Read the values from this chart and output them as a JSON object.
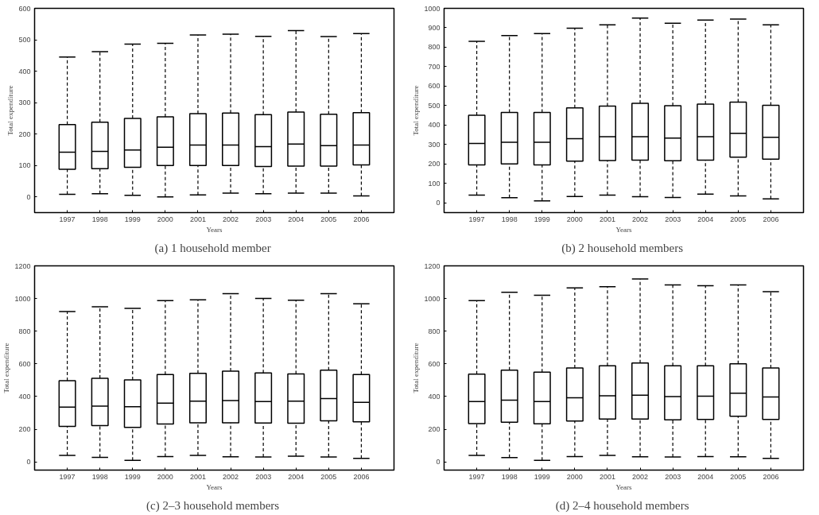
{
  "chart_data": [
    {
      "type": "box",
      "title": "(a)  1 household member",
      "xlabel": "Years",
      "ylabel": "Total expenditure",
      "categories": [
        "1997",
        "1998",
        "1999",
        "2000",
        "2001",
        "2002",
        "2003",
        "2004",
        "2005",
        "2006"
      ],
      "ylim": [
        -50,
        600
      ],
      "yticks": [
        0,
        100,
        200,
        300,
        400,
        500,
        600
      ],
      "line_style": "dashed",
      "series": [
        {
          "color": "#000000",
          "boxes": [
            {
              "low": 8,
              "q1": 88,
              "median": 142,
              "q3": 230,
              "high": 445
            },
            {
              "low": 10,
              "q1": 90,
              "median": 145,
              "q3": 238,
              "high": 462
            },
            {
              "low": 5,
              "q1": 94,
              "median": 149,
              "q3": 250,
              "high": 486
            },
            {
              "low": 0,
              "q1": 100,
              "median": 158,
              "q3": 255,
              "high": 489
            },
            {
              "low": 6,
              "q1": 100,
              "median": 165,
              "q3": 265,
              "high": 515
            },
            {
              "low": 12,
              "q1": 100,
              "median": 165,
              "q3": 267,
              "high": 518
            },
            {
              "low": 10,
              "q1": 97,
              "median": 160,
              "q3": 262,
              "high": 511
            },
            {
              "low": 12,
              "q1": 98,
              "median": 168,
              "q3": 270,
              "high": 529
            },
            {
              "low": 12,
              "q1": 98,
              "median": 163,
              "q3": 263,
              "high": 510
            },
            {
              "low": 3,
              "q1": 102,
              "median": 165,
              "q3": 268,
              "high": 520
            }
          ]
        }
      ]
    },
    {
      "type": "box",
      "title": "(b)  2 household members",
      "xlabel": "Years",
      "ylabel": "Total expenditure",
      "categories": [
        "1997",
        "1998",
        "1999",
        "2000",
        "2001",
        "2002",
        "2003",
        "2004",
        "2005",
        "2006"
      ],
      "ylim": [
        -50,
        1000
      ],
      "yticks": [
        0,
        100,
        200,
        300,
        400,
        500,
        600,
        700,
        800,
        900,
        1000
      ],
      "line_style": "dashed",
      "series": [
        {
          "color": "#000000",
          "boxes": [
            {
              "low": 40,
              "q1": 195,
              "median": 305,
              "q3": 450,
              "high": 830
            },
            {
              "low": 27,
              "q1": 200,
              "median": 312,
              "q3": 465,
              "high": 860
            },
            {
              "low": 10,
              "q1": 195,
              "median": 312,
              "q3": 465,
              "high": 870
            },
            {
              "low": 33,
              "q1": 215,
              "median": 330,
              "q3": 488,
              "high": 898
            },
            {
              "low": 40,
              "q1": 218,
              "median": 340,
              "q3": 497,
              "high": 915
            },
            {
              "low": 32,
              "q1": 220,
              "median": 340,
              "q3": 512,
              "high": 950
            },
            {
              "low": 28,
              "q1": 217,
              "median": 333,
              "q3": 500,
              "high": 923
            },
            {
              "low": 45,
              "q1": 220,
              "median": 340,
              "q3": 508,
              "high": 940
            },
            {
              "low": 36,
              "q1": 235,
              "median": 358,
              "q3": 518,
              "high": 945
            },
            {
              "low": 20,
              "q1": 225,
              "median": 337,
              "q3": 502,
              "high": 915
            }
          ]
        }
      ]
    },
    {
      "type": "box",
      "title": "(c)  2–3 household members",
      "xlabel": "Years",
      "ylabel": "Total expenditure",
      "categories": [
        "1997",
        "1998",
        "1999",
        "2000",
        "2001",
        "2002",
        "2003",
        "2004",
        "2005",
        "2006"
      ],
      "ylim": [
        -50,
        1200
      ],
      "yticks": [
        0,
        200,
        400,
        600,
        800,
        1000,
        1200
      ],
      "line_style": "dashed",
      "series": [
        {
          "color": "#000000",
          "boxes": [
            {
              "low": 40,
              "q1": 218,
              "median": 335,
              "q3": 497,
              "high": 920
            },
            {
              "low": 28,
              "q1": 222,
              "median": 342,
              "q3": 512,
              "high": 950
            },
            {
              "low": 10,
              "q1": 212,
              "median": 338,
              "q3": 502,
              "high": 940
            },
            {
              "low": 33,
              "q1": 232,
              "median": 360,
              "q3": 535,
              "high": 987
            },
            {
              "low": 40,
              "q1": 240,
              "median": 372,
              "q3": 542,
              "high": 992
            },
            {
              "low": 32,
              "q1": 240,
              "median": 375,
              "q3": 555,
              "high": 1030
            },
            {
              "low": 30,
              "q1": 238,
              "median": 370,
              "q3": 545,
              "high": 1000
            },
            {
              "low": 35,
              "q1": 237,
              "median": 372,
              "q3": 538,
              "high": 990
            },
            {
              "low": 30,
              "q1": 252,
              "median": 388,
              "q3": 562,
              "high": 1030
            },
            {
              "low": 22,
              "q1": 245,
              "median": 365,
              "q3": 535,
              "high": 968
            }
          ]
        }
      ]
    },
    {
      "type": "box",
      "title": "(d)  2–4 household members",
      "xlabel": "Years",
      "ylabel": "Total expenditure",
      "categories": [
        "1997",
        "1998",
        "1999",
        "2000",
        "2001",
        "2002",
        "2003",
        "2004",
        "2005",
        "2006"
      ],
      "ylim": [
        -50,
        1200
      ],
      "yticks": [
        0,
        200,
        400,
        600,
        800,
        1000,
        1200
      ],
      "line_style": "dashed",
      "series": [
        {
          "color": "#000000",
          "boxes": [
            {
              "low": 40,
              "q1": 235,
              "median": 370,
              "q3": 537,
              "high": 987
            },
            {
              "low": 27,
              "q1": 243,
              "median": 378,
              "q3": 562,
              "high": 1038
            },
            {
              "low": 10,
              "q1": 233,
              "median": 370,
              "q3": 550,
              "high": 1020
            },
            {
              "low": 33,
              "q1": 250,
              "median": 393,
              "q3": 575,
              "high": 1065
            },
            {
              "low": 40,
              "q1": 262,
              "median": 405,
              "q3": 588,
              "high": 1072
            },
            {
              "low": 32,
              "q1": 262,
              "median": 408,
              "q3": 605,
              "high": 1120
            },
            {
              "low": 30,
              "q1": 258,
              "median": 400,
              "q3": 588,
              "high": 1083
            },
            {
              "low": 33,
              "q1": 260,
              "median": 402,
              "q3": 588,
              "high": 1078
            },
            {
              "low": 32,
              "q1": 280,
              "median": 420,
              "q3": 600,
              "high": 1083
            },
            {
              "low": 22,
              "q1": 260,
              "median": 397,
              "q3": 575,
              "high": 1042
            }
          ]
        }
      ]
    }
  ]
}
